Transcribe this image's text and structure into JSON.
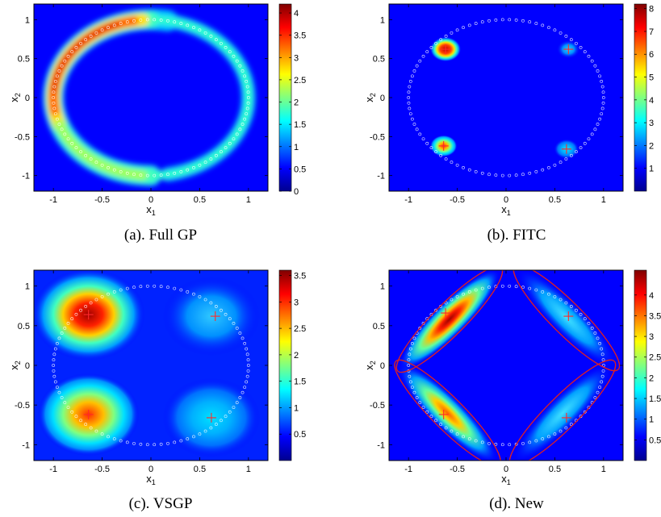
{
  "colormap": [
    "#00008f",
    "#0000ff",
    "#0080ff",
    "#00ffff",
    "#80ff80",
    "#ffff00",
    "#ff8000",
    "#ff0000",
    "#800000"
  ],
  "marker_color": "#ff2a2a",
  "ellipse_color": "#e02020",
  "ring_color": "#ffffff",
  "chart_data": [
    {
      "id": "a",
      "type": "heatmap",
      "caption": "(a). Full GP",
      "xlabel": "x",
      "xlabel_sub": "1",
      "ylabel": "x",
      "ylabel_sub": "2",
      "xlim": [
        -1.2,
        1.2
      ],
      "ylim": [
        -1.2,
        1.2
      ],
      "xticks": [
        -1,
        -0.5,
        0,
        0.5,
        1
      ],
      "xtick_labels": [
        "-1",
        "-0.5",
        "0",
        "0.5",
        "1"
      ],
      "yticks": [
        1,
        0.5,
        0,
        -0.5,
        -1
      ],
      "ytick_labels": [
        "1",
        "0.5",
        "0",
        "-0.5",
        "-1"
      ],
      "colorbar": {
        "range": [
          0,
          4.2
        ],
        "ticks": [
          0,
          0.5,
          1,
          1.5,
          2,
          2.5,
          3,
          3.5,
          4
        ],
        "labels": [
          "0",
          "0.5",
          "1",
          "1.5",
          "2",
          "2.5",
          "3",
          "3.5",
          "4"
        ]
      },
      "data_ring_radius": 1,
      "inducing_points": []
    },
    {
      "id": "b",
      "type": "heatmap",
      "caption": "(b). FITC",
      "xlabel": "x",
      "xlabel_sub": "1",
      "ylabel": "x",
      "ylabel_sub": "2",
      "xlim": [
        -1.2,
        1.2
      ],
      "ylim": [
        -1.2,
        1.2
      ],
      "xticks": [
        -1,
        -0.5,
        0,
        0.5,
        1
      ],
      "xtick_labels": [
        "-1",
        "-0.5",
        "0",
        "0.5",
        "1"
      ],
      "yticks": [
        1,
        0.5,
        0,
        -0.5,
        -1
      ],
      "ytick_labels": [
        "1",
        "0.5",
        "0",
        "-0.5",
        "-1"
      ],
      "colorbar": {
        "range": [
          0,
          8.2
        ],
        "ticks": [
          1,
          2,
          3,
          4,
          5,
          6,
          7,
          8
        ],
        "labels": [
          "1",
          "2",
          "3",
          "4",
          "5",
          "6",
          "7",
          "8"
        ]
      },
      "data_ring_radius": 1,
      "inducing_points": [
        [
          -0.62,
          0.62
        ],
        [
          0.64,
          0.62
        ],
        [
          -0.64,
          -0.62
        ],
        [
          0.62,
          -0.66
        ]
      ]
    },
    {
      "id": "c",
      "type": "heatmap",
      "caption": "(c). VSGP",
      "xlabel": "x",
      "xlabel_sub": "1",
      "ylabel": "x",
      "ylabel_sub": "2",
      "xlim": [
        -1.2,
        1.2
      ],
      "ylim": [
        -1.2,
        1.2
      ],
      "xticks": [
        -1,
        -0.5,
        0,
        0.5,
        1
      ],
      "xtick_labels": [
        "-1",
        "-0.5",
        "0",
        "0.5",
        "1"
      ],
      "yticks": [
        1,
        0.5,
        0,
        -0.5,
        -1
      ],
      "ytick_labels": [
        "1",
        "0.5",
        "0",
        "-0.5",
        "-1"
      ],
      "colorbar": {
        "range": [
          0,
          3.6
        ],
        "ticks": [
          0.5,
          1,
          1.5,
          2,
          2.5,
          3,
          3.5
        ],
        "labels": [
          "0.5",
          "1",
          "1.5",
          "2",
          "2.5",
          "3",
          "3.5"
        ]
      },
      "data_ring_radius": 1,
      "inducing_points": [
        [
          -0.64,
          0.64
        ],
        [
          0.66,
          0.62
        ],
        [
          -0.64,
          -0.62
        ],
        [
          0.62,
          -0.66
        ]
      ]
    },
    {
      "id": "d",
      "type": "heatmap",
      "caption": "(d). New",
      "xlabel": "x",
      "xlabel_sub": "1",
      "ylabel": "x",
      "ylabel_sub": "2",
      "xlim": [
        -1.2,
        1.2
      ],
      "ylim": [
        -1.2,
        1.2
      ],
      "xticks": [
        -1,
        -0.5,
        0,
        0.5,
        1
      ],
      "xtick_labels": [
        "-1",
        "-0.5",
        "0",
        "0.5",
        "1"
      ],
      "yticks": [
        1,
        0.5,
        0,
        -0.5,
        -1
      ],
      "ytick_labels": [
        "1",
        "0.5",
        "0",
        "-0.5",
        "-1"
      ],
      "colorbar": {
        "range": [
          0,
          4.6
        ],
        "ticks": [
          0.5,
          1,
          1.5,
          2,
          2.5,
          3,
          3.5,
          4
        ],
        "labels": [
          "0.5",
          "1",
          "1.5",
          "2",
          "2.5",
          "3",
          "3.5",
          "4"
        ]
      },
      "data_ring_radius": 1,
      "inducing_points": [
        [
          -0.62,
          0.66
        ],
        [
          0.64,
          0.62
        ],
        [
          -0.64,
          -0.62
        ],
        [
          0.62,
          -0.66
        ]
      ],
      "ellipses": [
        {
          "cx": -0.58,
          "cy": 0.58,
          "rx": 0.75,
          "ry": 0.2,
          "angle_deg": 45
        },
        {
          "cx": 0.62,
          "cy": 0.6,
          "rx": 0.75,
          "ry": 0.2,
          "angle_deg": -45
        },
        {
          "cx": -0.6,
          "cy": -0.6,
          "rx": 0.75,
          "ry": 0.2,
          "angle_deg": -45
        },
        {
          "cx": 0.58,
          "cy": -0.6,
          "rx": 0.75,
          "ry": 0.2,
          "angle_deg": 45
        }
      ]
    }
  ]
}
